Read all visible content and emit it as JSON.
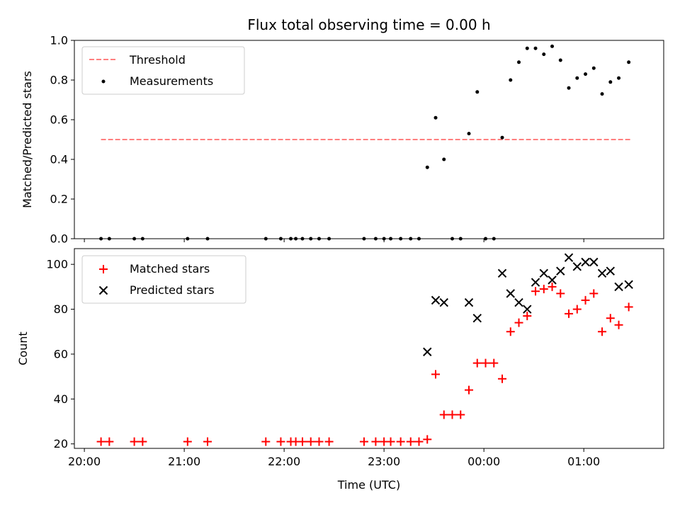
{
  "chart_data": {
    "title": "Flux total observing time = 0.00 h",
    "xlabel": "Time (UTC)",
    "x_unit": "time of day, UTC",
    "x_range": [
      "19:54",
      "01:48"
    ],
    "x_ticks": [
      "20:00",
      "21:00",
      "22:00",
      "23:00",
      "00:00",
      "01:00"
    ],
    "panels": [
      {
        "type": "scatter",
        "ylabel": "Matched/Predicted stars",
        "ylim": [
          0,
          1.0
        ],
        "yticks": [
          "0.0",
          "0.2",
          "0.4",
          "0.6",
          "0.8",
          "1.0"
        ],
        "grid": false,
        "legend_loc": "upper left",
        "threshold": {
          "name": "Threshold",
          "value": 0.5,
          "x_start": "20:10",
          "x_end": "01:28",
          "color": "#ff7f7f",
          "style": "dashed"
        },
        "series": [
          {
            "name": "Measurements",
            "color": "#000000",
            "marker": "dot",
            "points": [
              [
                "20:10",
                0
              ],
              [
                "20:15",
                0
              ],
              [
                "20:30",
                0
              ],
              [
                "20:35",
                0
              ],
              [
                "21:02",
                0
              ],
              [
                "21:14",
                0
              ],
              [
                "21:49",
                0
              ],
              [
                "21:58",
                0
              ],
              [
                "22:04",
                0
              ],
              [
                "22:07",
                0
              ],
              [
                "22:11",
                0
              ],
              [
                "22:16",
                0
              ],
              [
                "22:21",
                0
              ],
              [
                "22:27",
                0
              ],
              [
                "22:48",
                0
              ],
              [
                "22:55",
                0
              ],
              [
                "23:00",
                0
              ],
              [
                "23:04",
                0
              ],
              [
                "23:10",
                0
              ],
              [
                "23:16",
                0
              ],
              [
                "23:21",
                0
              ],
              [
                "23:26",
                0.36
              ],
              [
                "23:31",
                0.61
              ],
              [
                "23:36",
                0.4
              ],
              [
                "23:41",
                0
              ],
              [
                "23:46",
                0
              ],
              [
                "23:51",
                0.53
              ],
              [
                "23:56",
                0.74
              ],
              [
                "00:01",
                0
              ],
              [
                "00:06",
                0
              ],
              [
                "00:11",
                0.51
              ],
              [
                "00:16",
                0.8
              ],
              [
                "00:21",
                0.89
              ],
              [
                "00:26",
                0.96
              ],
              [
                "00:31",
                0.96
              ],
              [
                "00:36",
                0.93
              ],
              [
                "00:41",
                0.97
              ],
              [
                "00:46",
                0.9
              ],
              [
                "00:51",
                0.76
              ],
              [
                "00:56",
                0.81
              ],
              [
                "01:01",
                0.83
              ],
              [
                "01:06",
                0.86
              ],
              [
                "01:11",
                0.73
              ],
              [
                "01:16",
                0.79
              ],
              [
                "01:21",
                0.81
              ],
              [
                "01:27",
                0.89
              ]
            ]
          }
        ]
      },
      {
        "type": "scatter",
        "ylabel": "Count",
        "ylim": [
          18,
          107
        ],
        "yticks": [
          "20",
          "40",
          "60",
          "80",
          "100"
        ],
        "grid": false,
        "legend_loc": "upper left",
        "series": [
          {
            "name": "Matched stars",
            "color": "#ff0000",
            "marker": "plus",
            "points": [
              [
                "20:10",
                21
              ],
              [
                "20:15",
                21
              ],
              [
                "20:30",
                21
              ],
              [
                "20:35",
                21
              ],
              [
                "21:02",
                21
              ],
              [
                "21:14",
                21
              ],
              [
                "21:49",
                21
              ],
              [
                "21:58",
                21
              ],
              [
                "22:04",
                21
              ],
              [
                "22:07",
                21
              ],
              [
                "22:11",
                21
              ],
              [
                "22:16",
                21
              ],
              [
                "22:21",
                21
              ],
              [
                "22:27",
                21
              ],
              [
                "22:48",
                21
              ],
              [
                "22:55",
                21
              ],
              [
                "23:00",
                21
              ],
              [
                "23:04",
                21
              ],
              [
                "23:10",
                21
              ],
              [
                "23:16",
                21
              ],
              [
                "23:21",
                21
              ],
              [
                "23:26",
                22
              ],
              [
                "23:31",
                51
              ],
              [
                "23:36",
                33
              ],
              [
                "23:41",
                33
              ],
              [
                "23:46",
                33
              ],
              [
                "23:51",
                44
              ],
              [
                "23:56",
                56
              ],
              [
                "00:01",
                56
              ],
              [
                "00:06",
                56
              ],
              [
                "00:11",
                49
              ],
              [
                "00:16",
                70
              ],
              [
                "00:21",
                74
              ],
              [
                "00:26",
                77
              ],
              [
                "00:31",
                88
              ],
              [
                "00:36",
                89
              ],
              [
                "00:41",
                90
              ],
              [
                "00:46",
                87
              ],
              [
                "00:51",
                78
              ],
              [
                "00:56",
                80
              ],
              [
                "01:01",
                84
              ],
              [
                "01:06",
                87
              ],
              [
                "01:11",
                70
              ],
              [
                "01:16",
                76
              ],
              [
                "01:21",
                73
              ],
              [
                "01:27",
                81
              ]
            ]
          },
          {
            "name": "Predicted stars",
            "color": "#000000",
            "marker": "x",
            "points": [
              [
                "23:26",
                61
              ],
              [
                "23:31",
                84
              ],
              [
                "23:36",
                83
              ],
              [
                "23:51",
                83
              ],
              [
                "23:56",
                76
              ],
              [
                "00:11",
                96
              ],
              [
                "00:16",
                87
              ],
              [
                "00:21",
                83
              ],
              [
                "00:26",
                80
              ],
              [
                "00:31",
                92
              ],
              [
                "00:36",
                96
              ],
              [
                "00:41",
                93
              ],
              [
                "00:46",
                97
              ],
              [
                "00:51",
                103
              ],
              [
                "00:56",
                99
              ],
              [
                "01:01",
                101
              ],
              [
                "01:06",
                101
              ],
              [
                "01:11",
                96
              ],
              [
                "01:16",
                97
              ],
              [
                "01:21",
                90
              ],
              [
                "01:27",
                91
              ]
            ]
          }
        ]
      }
    ]
  }
}
